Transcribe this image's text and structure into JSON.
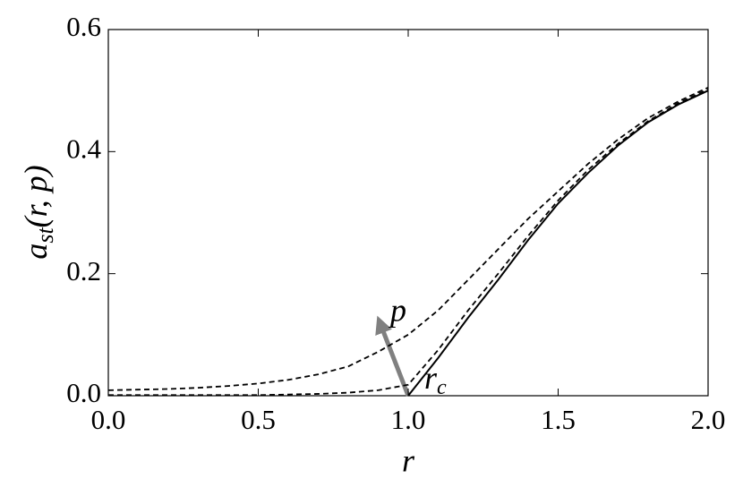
{
  "chart_data": {
    "type": "line",
    "xlabel": "r",
    "ylabel": {
      "base": "a",
      "sub": "st",
      "rest": "(r, p)"
    },
    "annotations": {
      "arrow": "p",
      "point": {
        "base": "r",
        "sub": "c"
      }
    },
    "x": [
      0.0,
      0.1,
      0.2,
      0.3,
      0.4,
      0.5,
      0.6,
      0.7,
      0.8,
      0.9,
      1.0,
      1.1,
      1.2,
      1.3,
      1.4,
      1.5,
      1.6,
      1.7,
      1.8,
      1.9,
      2.0
    ],
    "series": [
      {
        "color": "#000000",
        "style": "solid",
        "values": [
          null,
          null,
          null,
          null,
          null,
          null,
          null,
          null,
          null,
          null,
          0,
          0.062,
          0.128,
          0.19,
          0.255,
          0.315,
          0.365,
          0.41,
          0.448,
          0.477,
          0.5
        ]
      },
      {
        "color": "#000000",
        "style": "dashed",
        "values": [
          0.001,
          0.001,
          0.001,
          0.001,
          0.001,
          0.001,
          0.002,
          0.003,
          0.005,
          0.009,
          0.018,
          0.075,
          0.14,
          0.2,
          0.262,
          0.32,
          0.37,
          0.413,
          0.45,
          0.479,
          0.502
        ]
      },
      {
        "color": "#000000",
        "style": "dashed",
        "values": [
          0.009,
          0.01,
          0.011,
          0.013,
          0.016,
          0.02,
          0.026,
          0.035,
          0.048,
          0.072,
          0.1,
          0.14,
          0.19,
          0.24,
          0.29,
          0.335,
          0.38,
          0.42,
          0.455,
          0.482,
          0.505
        ]
      }
    ],
    "xlim": [
      0,
      2
    ],
    "ylim": [
      0,
      0.6
    ],
    "xticks": [
      {
        "value": 0,
        "label": "0.0"
      },
      0.5,
      {
        "value": 1,
        "label": "1.0"
      },
      1.5,
      {
        "value": 2,
        "label": "2.0"
      }
    ],
    "yticks": [
      {
        "value": 0,
        "label": "0.0"
      },
      0.2,
      0.4,
      0.6
    ]
  }
}
